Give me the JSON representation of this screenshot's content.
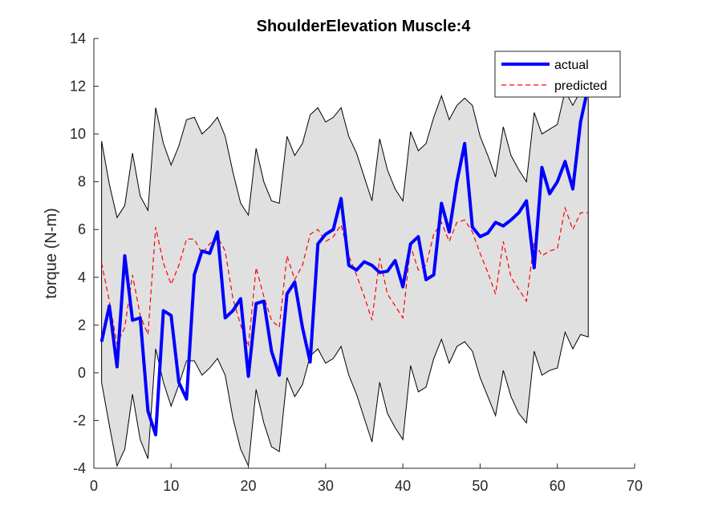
{
  "chart_data": {
    "type": "line",
    "title": "ShoulderElevation Muscle:4",
    "xlabel": "",
    "ylabel": "torque (N-m)",
    "xlim": [
      0,
      70
    ],
    "ylim": [
      -4,
      14
    ],
    "xticks": [
      0,
      10,
      20,
      30,
      40,
      50,
      60,
      70
    ],
    "yticks": [
      -4,
      -2,
      0,
      2,
      4,
      6,
      8,
      10,
      12,
      14
    ],
    "grid": false,
    "legend_position": "top-right",
    "x": [
      1,
      2,
      3,
      4,
      5,
      6,
      7,
      8,
      9,
      10,
      11,
      12,
      13,
      14,
      15,
      16,
      17,
      18,
      19,
      20,
      21,
      22,
      23,
      24,
      25,
      26,
      27,
      28,
      29,
      30,
      31,
      32,
      33,
      34,
      35,
      36,
      37,
      38,
      39,
      40,
      41,
      42,
      43,
      44,
      45,
      46,
      47,
      48,
      49,
      50,
      51,
      52,
      53,
      54,
      55,
      56,
      57,
      58,
      59,
      60,
      61,
      62,
      63,
      64
    ],
    "series": [
      {
        "name": "actual",
        "color": "#0000ff",
        "style": "solid",
        "values": [
          1.3,
          2.8,
          0.25,
          4.9,
          2.2,
          2.3,
          -1.6,
          -2.6,
          2.6,
          2.4,
          -0.4,
          -1.1,
          4.1,
          5.1,
          5.0,
          5.9,
          2.3,
          2.6,
          3.1,
          -0.15,
          2.9,
          3.0,
          0.9,
          -0.1,
          3.3,
          3.8,
          1.9,
          0.45,
          5.4,
          5.8,
          6.0,
          7.3,
          4.5,
          4.3,
          4.65,
          4.5,
          4.2,
          4.25,
          4.7,
          3.6,
          5.4,
          5.7,
          3.9,
          4.1,
          7.1,
          5.9,
          8.0,
          9.6,
          6.1,
          5.7,
          5.85,
          6.3,
          6.15,
          6.4,
          6.7,
          7.2,
          4.4,
          8.6,
          7.5,
          8.0,
          8.85,
          7.7,
          10.5,
          12.0
        ]
      },
      {
        "name": "predicted",
        "color": "#ff0000",
        "style": "dashed",
        "values": [
          4.6,
          3.0,
          1.2,
          1.9,
          4.1,
          2.4,
          1.6,
          6.1,
          4.6,
          3.7,
          4.5,
          5.6,
          5.6,
          5.0,
          5.4,
          5.7,
          5.1,
          3.1,
          2.0,
          1.1,
          4.4,
          3.2,
          2.2,
          1.9,
          4.9,
          3.9,
          4.5,
          5.8,
          6.0,
          5.5,
          5.7,
          6.2,
          4.9,
          4.1,
          3.2,
          2.2,
          4.8,
          3.3,
          2.8,
          2.3,
          5.3,
          4.3,
          4.5,
          5.8,
          6.3,
          5.5,
          6.3,
          6.4,
          5.9,
          5.0,
          4.2,
          3.3,
          5.5,
          4.0,
          3.5,
          3.0,
          5.5,
          4.9,
          5.1,
          5.2,
          6.9,
          6.0,
          6.7,
          6.7
        ]
      }
    ],
    "band": {
      "color": "#e0e0e0",
      "upper": [
        9.7,
        7.9,
        6.5,
        7.0,
        9.2,
        7.4,
        6.8,
        11.1,
        9.6,
        8.7,
        9.5,
        10.6,
        10.7,
        10.0,
        10.3,
        10.7,
        9.9,
        8.4,
        7.1,
        6.6,
        9.4,
        8.0,
        7.2,
        7.1,
        9.9,
        9.1,
        9.6,
        10.8,
        11.1,
        10.5,
        10.7,
        11.1,
        9.9,
        9.2,
        8.2,
        7.2,
        9.8,
        8.5,
        7.7,
        7.2,
        10.1,
        9.3,
        9.6,
        10.7,
        11.6,
        10.6,
        11.2,
        11.5,
        11.2,
        9.9,
        9.1,
        8.2,
        10.3,
        9.1,
        8.5,
        8.0,
        10.9,
        10.0,
        10.2,
        10.4,
        11.8,
        11.2,
        11.8,
        11.6
      ],
      "lower": [
        -0.4,
        -2.2,
        -3.9,
        -3.2,
        -0.9,
        -2.8,
        -3.6,
        1.0,
        -0.4,
        -1.4,
        -0.5,
        0.5,
        0.5,
        -0.1,
        0.2,
        0.6,
        -0.1,
        -1.9,
        -3.2,
        -3.9,
        -0.7,
        -2.1,
        -3.1,
        -3.3,
        -0.2,
        -1.0,
        -0.5,
        0.7,
        1.0,
        0.4,
        0.6,
        1.1,
        -0.1,
        -0.9,
        -1.9,
        -2.9,
        -0.4,
        -1.7,
        -2.3,
        -2.8,
        0.3,
        -0.8,
        -0.6,
        0.6,
        1.4,
        0.4,
        1.1,
        1.3,
        0.9,
        -0.2,
        -1.0,
        -1.8,
        0.1,
        -1.0,
        -1.7,
        -2.1,
        0.9,
        -0.1,
        0.1,
        0.2,
        1.7,
        1.0,
        1.6,
        1.5
      ]
    }
  }
}
